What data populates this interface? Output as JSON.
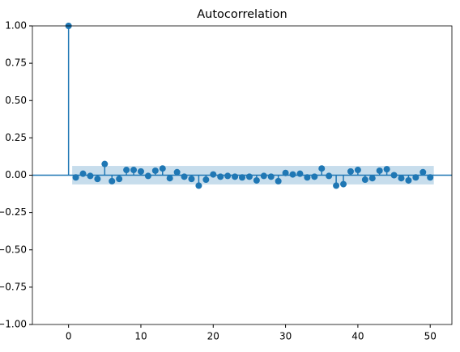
{
  "chart_data": {
    "type": "stem",
    "title": "Autocorrelation",
    "color": "#1f77b4",
    "x": [
      0,
      1,
      2,
      3,
      4,
      5,
      6,
      7,
      8,
      9,
      10,
      11,
      12,
      13,
      14,
      15,
      16,
      17,
      18,
      19,
      20,
      21,
      22,
      23,
      24,
      25,
      26,
      27,
      28,
      29,
      30,
      31,
      32,
      33,
      34,
      35,
      36,
      37,
      38,
      39,
      40,
      41,
      42,
      43,
      44,
      45,
      46,
      47,
      48,
      49,
      50
    ],
    "values": [
      1,
      -0.015,
      0.01,
      -0.005,
      -0.025,
      0.075,
      -0.04,
      -0.025,
      0.035,
      0.035,
      0.025,
      -0.005,
      0.03,
      0.045,
      -0.02,
      0.02,
      -0.01,
      -0.025,
      -0.07,
      -0.03,
      0.005,
      -0.01,
      -0.005,
      -0.01,
      -0.015,
      -0.01,
      -0.035,
      -0.005,
      -0.01,
      -0.04,
      0.015,
      0.005,
      0.01,
      -0.015,
      -0.01,
      0.045,
      -0.005,
      -0.07,
      -0.06,
      0.025,
      0.035,
      -0.03,
      -0.02,
      0.03,
      0.04,
      0,
      -0.02,
      -0.035,
      -0.015,
      0.02,
      -0.015
    ],
    "confidence_band": {
      "x": [
        0.5,
        50.5
      ],
      "lower": -0.062,
      "upper": 0.062,
      "color": "#1f77b4"
    },
    "xlim": [
      -5,
      53
    ],
    "ylim": [
      -1,
      1
    ],
    "xticks": [
      0,
      10,
      20,
      30,
      40,
      50
    ],
    "yticks": [
      {
        "value": -1,
        "label": "−1.00"
      },
      {
        "value": -0.75,
        "label": "−0.75"
      },
      {
        "value": -0.5,
        "label": "−0.50"
      },
      {
        "value": -0.25,
        "label": "−0.25"
      },
      {
        "value": 0,
        "label": "0.00"
      },
      {
        "value": 0.25,
        "label": "0.25"
      },
      {
        "value": 0.5,
        "label": "0.50"
      },
      {
        "value": 0.75,
        "label": "0.75"
      },
      {
        "value": 1,
        "label": "1.00"
      }
    ]
  }
}
